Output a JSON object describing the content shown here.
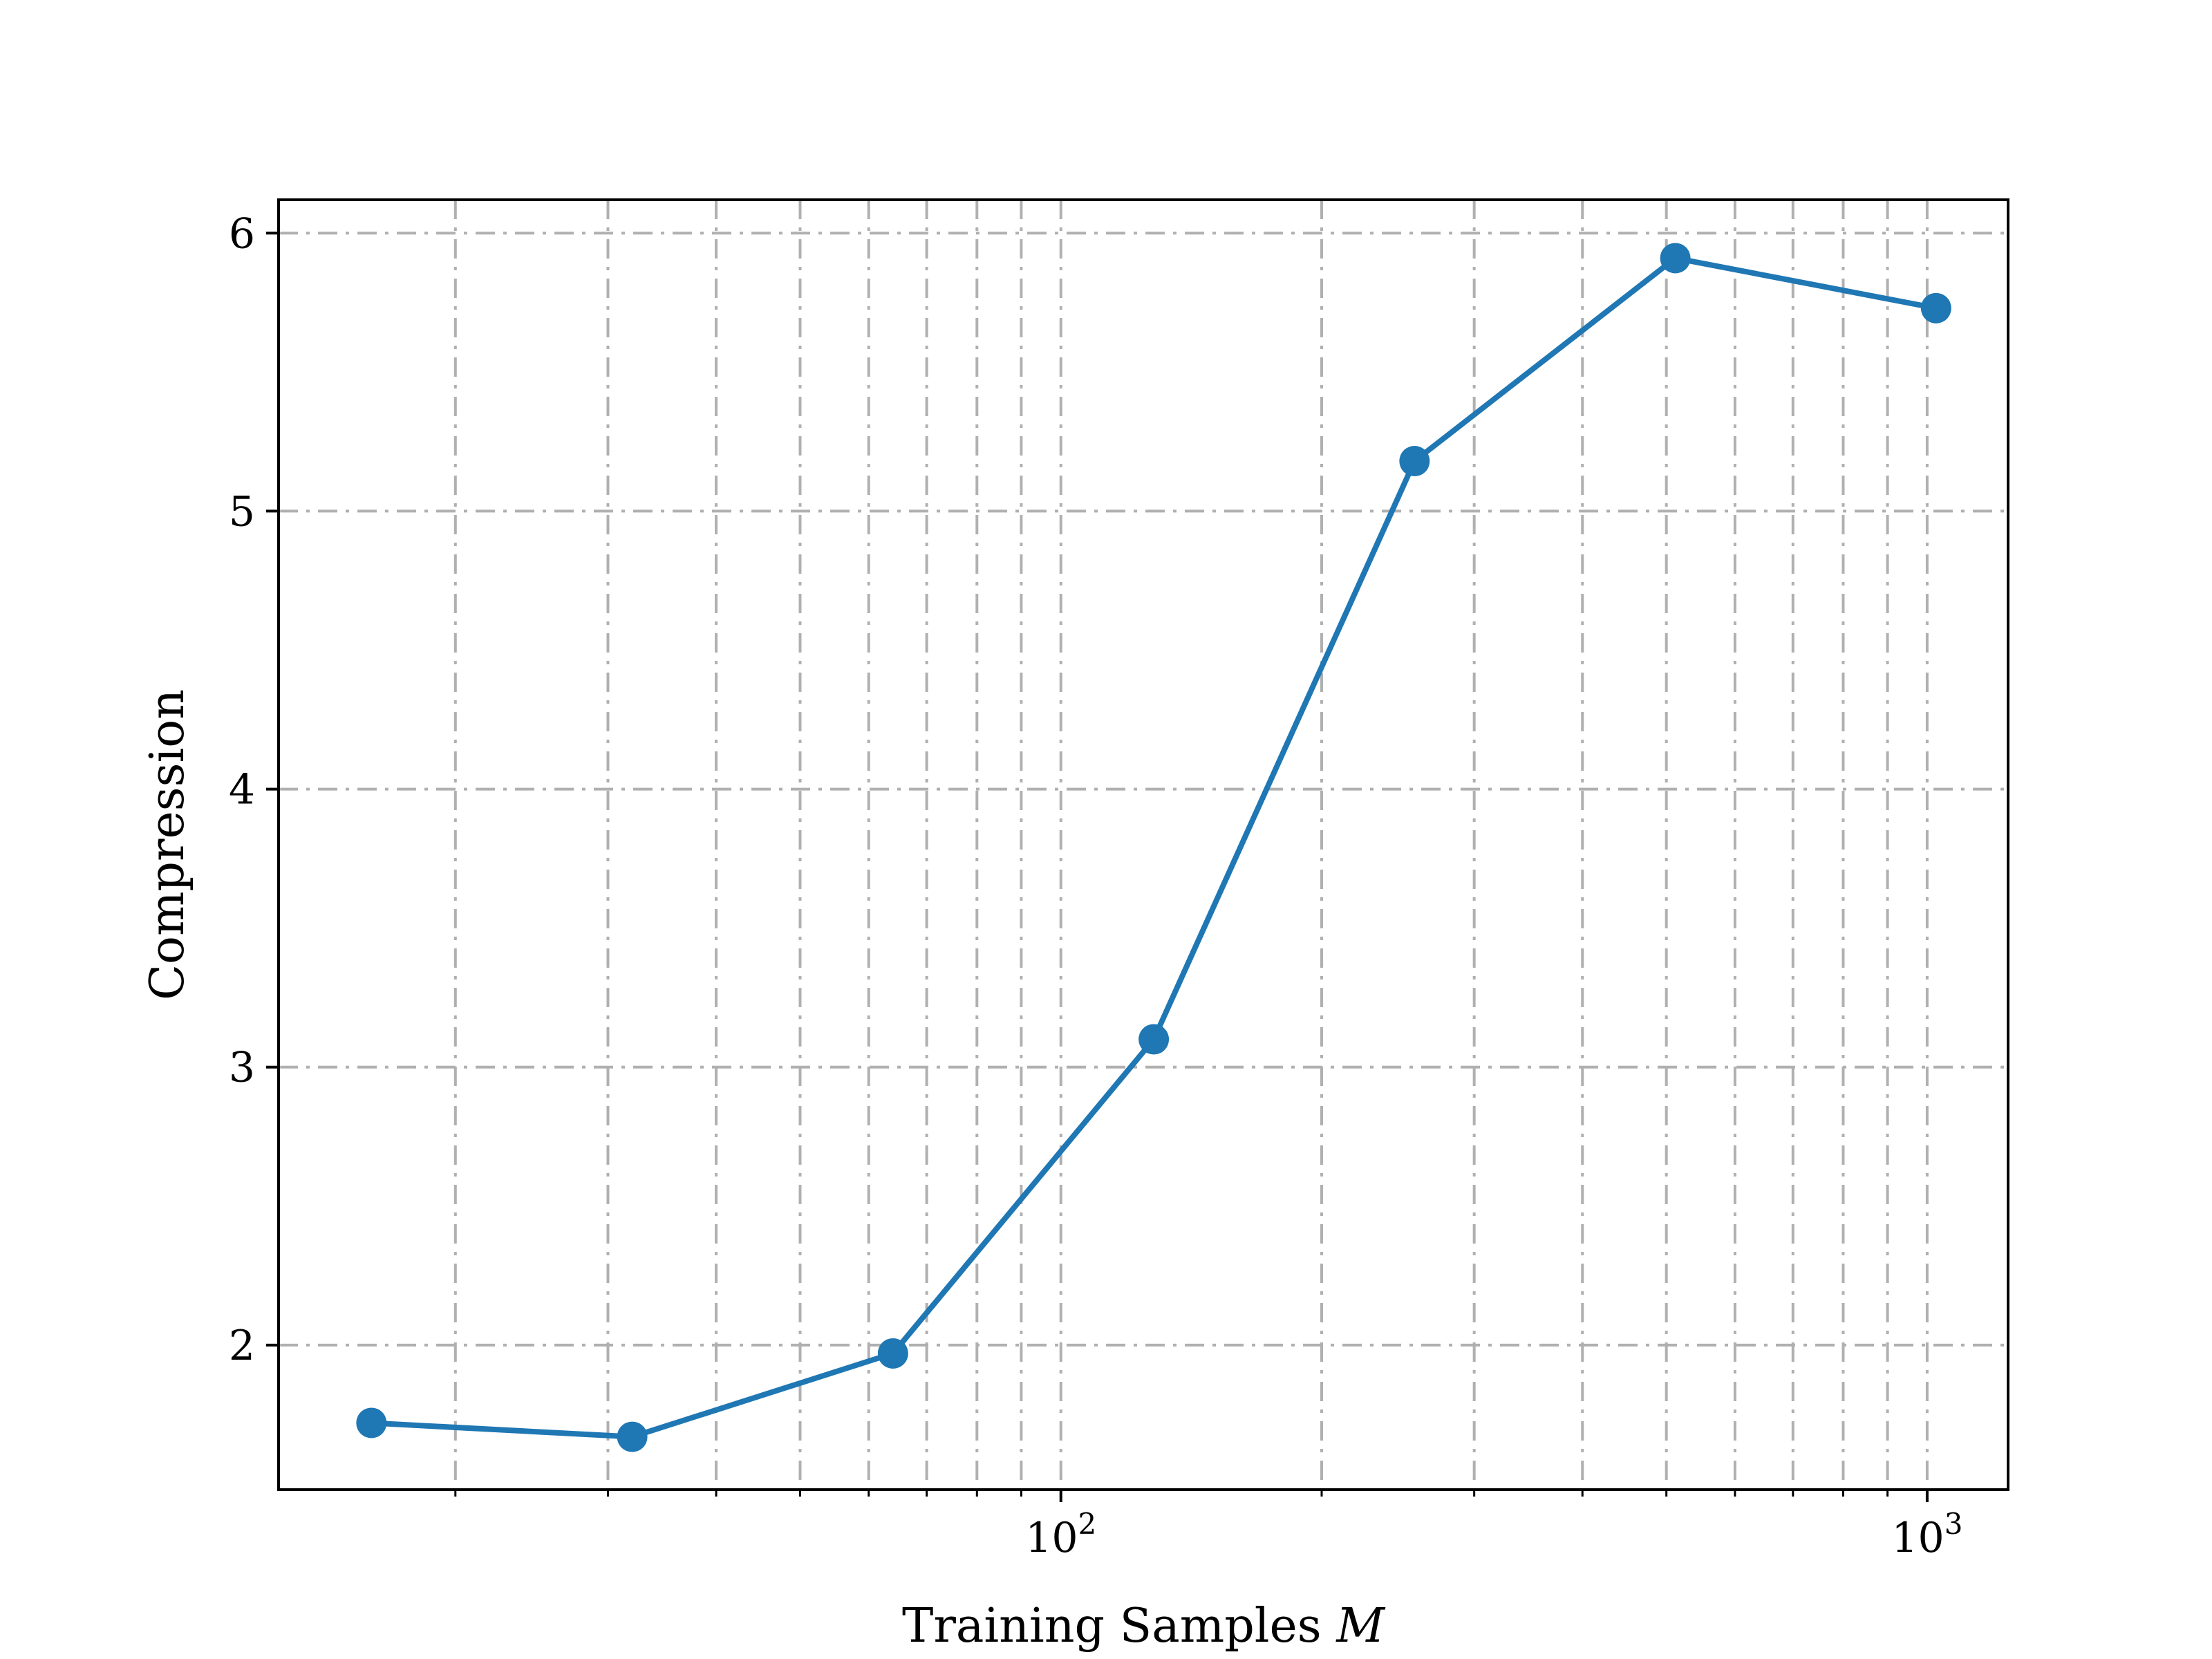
{
  "chart_data": {
    "type": "line",
    "title": "",
    "xlabel": "Training Samples",
    "xlabel_var": "M",
    "ylabel": "Compression",
    "x_scale": "log",
    "xlim": [
      12.5,
      1240
    ],
    "ylim": [
      1.48,
      6.12
    ],
    "x_major_ticks": [
      {
        "value": 100,
        "base": "10",
        "exp": "2"
      },
      {
        "value": 1000,
        "base": "10",
        "exp": "3"
      }
    ],
    "y_ticks": [
      {
        "value": 2,
        "label": "2"
      },
      {
        "value": 3,
        "label": "3"
      },
      {
        "value": 4,
        "label": "4"
      },
      {
        "value": 5,
        "label": "5"
      },
      {
        "value": 6,
        "label": "6"
      }
    ],
    "grid": true,
    "color": "#1f77b4",
    "series": [
      {
        "x": [
          16,
          32,
          64,
          128,
          256,
          512,
          1024
        ],
        "y": [
          1.72,
          1.67,
          1.97,
          3.1,
          5.18,
          5.91,
          5.73
        ]
      }
    ]
  }
}
